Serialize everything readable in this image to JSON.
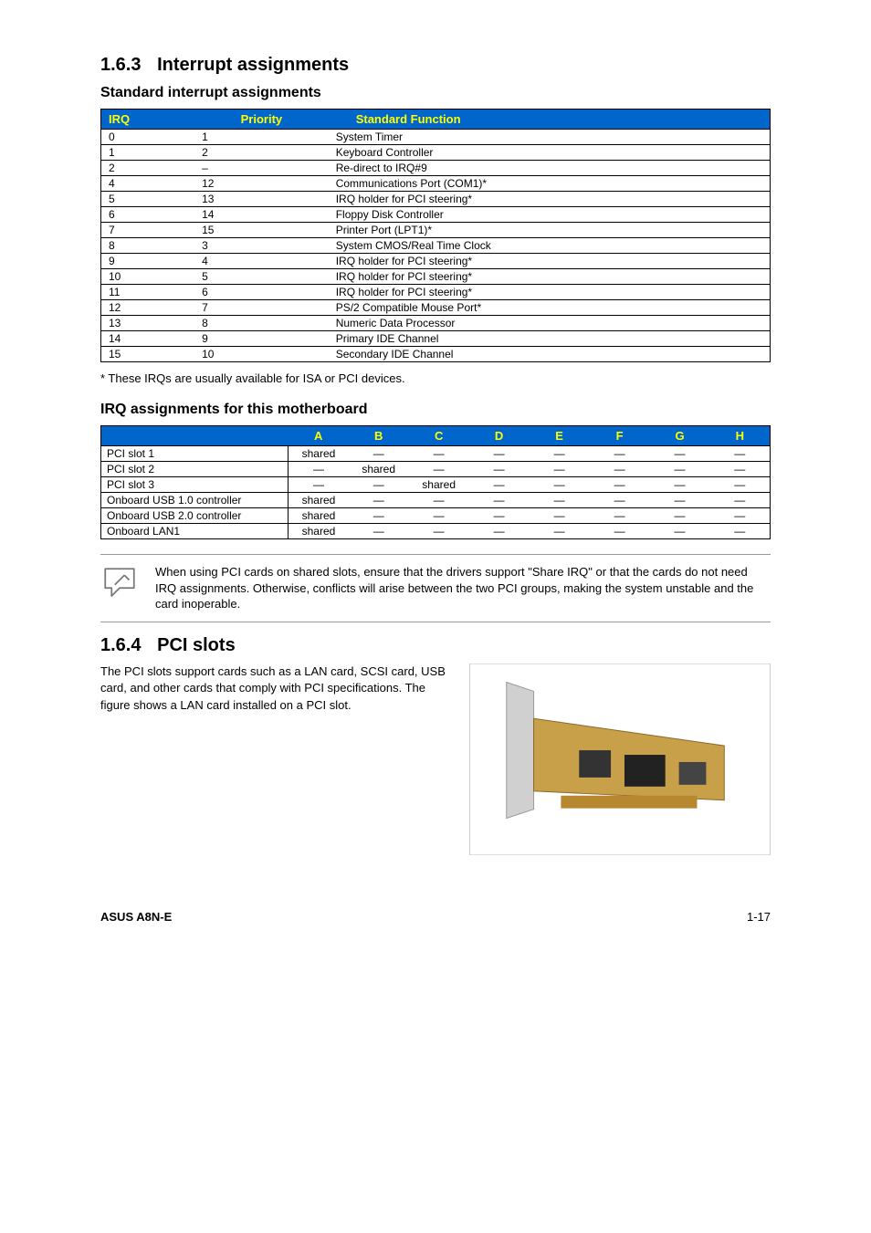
{
  "section163": {
    "num": "1.6.3",
    "title": "Interrupt assignments",
    "sub1": "Standard interrupt assignments",
    "sub2": "IRQ assignments for this motherboard"
  },
  "irq_table": {
    "header_bg": "#0066cc",
    "header_color": "#ffff00",
    "headers": [
      "IRQ",
      "Priority",
      "Standard Function"
    ],
    "rows": [
      [
        "0",
        "1",
        "System Timer"
      ],
      [
        "1",
        "2",
        "Keyboard Controller"
      ],
      [
        "2",
        "–",
        "Re-direct to IRQ#9"
      ],
      [
        "4",
        "12",
        "Communications Port (COM1)*"
      ],
      [
        "5",
        "13",
        "IRQ holder for PCI steering*"
      ],
      [
        "6",
        "14",
        "Floppy Disk Controller"
      ],
      [
        "7",
        "15",
        "Printer Port (LPT1)*"
      ],
      [
        "8",
        "3",
        "System CMOS/Real Time Clock"
      ],
      [
        "9",
        "4",
        "IRQ holder for PCI steering*"
      ],
      [
        "10",
        "5",
        "IRQ holder for PCI steering*"
      ],
      [
        "11",
        "6",
        "IRQ holder for PCI steering*"
      ],
      [
        "12",
        "7",
        "PS/2 Compatible Mouse Port*"
      ],
      [
        "13",
        "8",
        "Numeric Data Processor"
      ],
      [
        "14",
        "9",
        "Primary IDE Channel"
      ],
      [
        "15",
        "10",
        "Secondary IDE Channel"
      ]
    ]
  },
  "footnote": "* These IRQs are usually available for ISA or PCI devices.",
  "mb_table": {
    "headers": [
      "",
      "A",
      "B",
      "C",
      "D",
      "E",
      "F",
      "G",
      "H"
    ],
    "rows": [
      [
        "PCI slot 1",
        "shared",
        "—",
        "—",
        "—",
        "—",
        "—",
        "—",
        "—"
      ],
      [
        "PCI slot 2",
        "—",
        "shared",
        "—",
        "—",
        "—",
        "—",
        "—",
        "—"
      ],
      [
        "PCI slot 3",
        "—",
        "—",
        "shared",
        "—",
        "—",
        "—",
        "—",
        "—"
      ],
      [
        "Onboard USB 1.0 controller",
        "shared",
        "—",
        "—",
        "—",
        "—",
        "—",
        "—",
        "—"
      ],
      [
        "Onboard USB 2.0 controller",
        "shared",
        "—",
        "—",
        "—",
        "—",
        "—",
        "—",
        "—"
      ],
      [
        "Onboard LAN1",
        "shared",
        "—",
        "—",
        "—",
        "—",
        "—",
        "—",
        "—"
      ]
    ]
  },
  "note": "When using PCI cards on shared slots, ensure that the drivers support \"Share IRQ\" or that the cards do not need IRQ assignments. Otherwise, conflicts will arise between the two PCI groups, making the system unstable and the card inoperable.",
  "section164": {
    "num": "1.6.4",
    "title": "PCI slots",
    "body": "The PCI slots support cards such as a LAN card, SCSI card, USB card, and other cards that comply with PCI specifications. The figure shows a LAN card installed on a PCI slot."
  },
  "footer": {
    "left": "ASUS A8N-E",
    "right": "1-17"
  }
}
